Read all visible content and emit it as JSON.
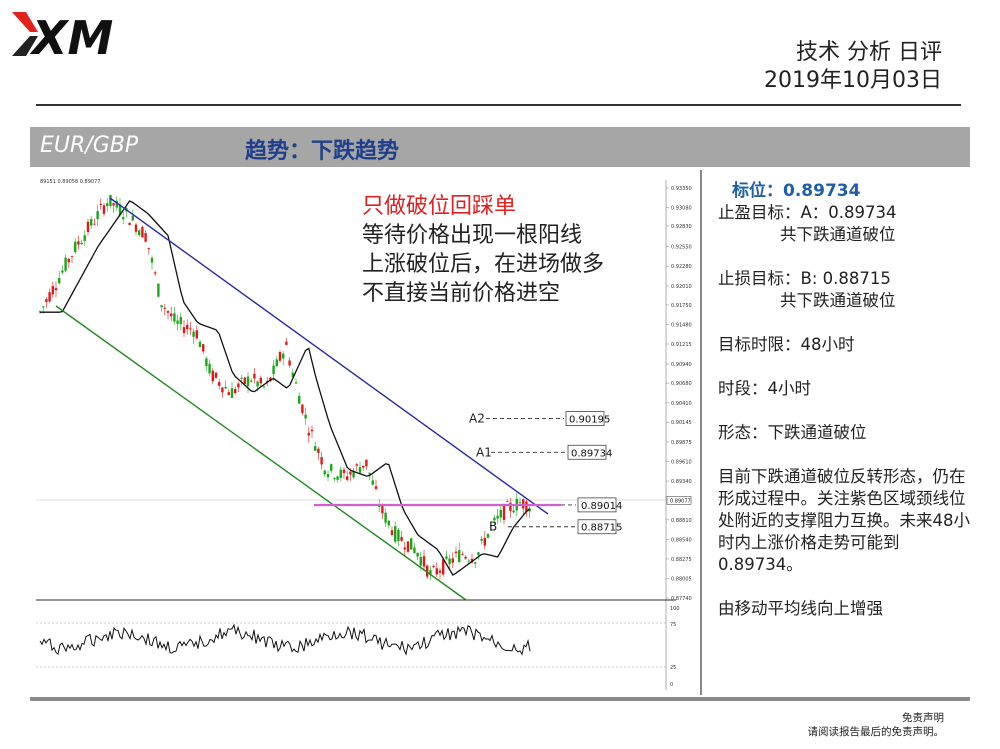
{
  "header": {
    "logo_text": "XM",
    "title": "技术 分析 日评",
    "date": "2019年10月03日"
  },
  "band": {
    "pair": "EUR/GBP",
    "trend": "趋势：下跌趋势"
  },
  "annotation": {
    "line1": "只做破位回踩单",
    "line2": "等待价格出现一根阳线",
    "line3": "上涨破位后，在进场做多",
    "line4": "不直接当前价格进空"
  },
  "panel": {
    "target": "标位：0.89734",
    "take_profit": "止盈目标：A：0.89734",
    "take_profit_note": "共下跌通道破位",
    "stop_loss": "止损目标：B: 0.88715",
    "stop_loss_note": "共下跌通道破位",
    "time_limit": "目标时限：48小时",
    "timeframe": "时段：4小时",
    "pattern": "形态：下跌通道破位",
    "description": "目前下跌通道破位反转形态，仍在形成过程中。关注紫色区域颈线位处附近的支撑阻力互换。未来48小时内上涨价格走势可能到0.89734。",
    "ma_note": "由移动平均线向上增强"
  },
  "disclaimer": {
    "line1": "免责声明",
    "line2": "请阅读报告最后的免责声明。"
  },
  "chart_data": {
    "type": "candlestick",
    "header_text": "89151 0.89058 0.89077",
    "y_ticks": [
      "0.93350",
      "0.93080",
      "0.92830",
      "0.92550",
      "0.92280",
      "0.92010",
      "0.91750",
      "0.91480",
      "0.91215",
      "0.90940",
      "0.90680",
      "0.90410",
      "0.90145",
      "0.89875",
      "0.89610",
      "0.89340",
      "0.89077",
      "0.88810",
      "0.88540",
      "0.88275",
      "0.88005",
      "0.87740"
    ],
    "ylim": [
      0.8774,
      0.9335
    ],
    "levels": [
      {
        "name": "A2",
        "value": 0.90195
      },
      {
        "name": "A1",
        "value": 0.89734
      },
      {
        "name": "",
        "value": 0.89014
      },
      {
        "name": "B",
        "value": 0.88715
      }
    ],
    "current_price": 0.89077,
    "oscillator_ticks": [
      "100",
      "75",
      "25",
      "0"
    ],
    "channel": {
      "upper": "blue",
      "lower": "green",
      "neckline": "magenta"
    },
    "colors": {
      "up": "#1aa81a",
      "down": "#e01818",
      "ma": "#111111"
    }
  }
}
